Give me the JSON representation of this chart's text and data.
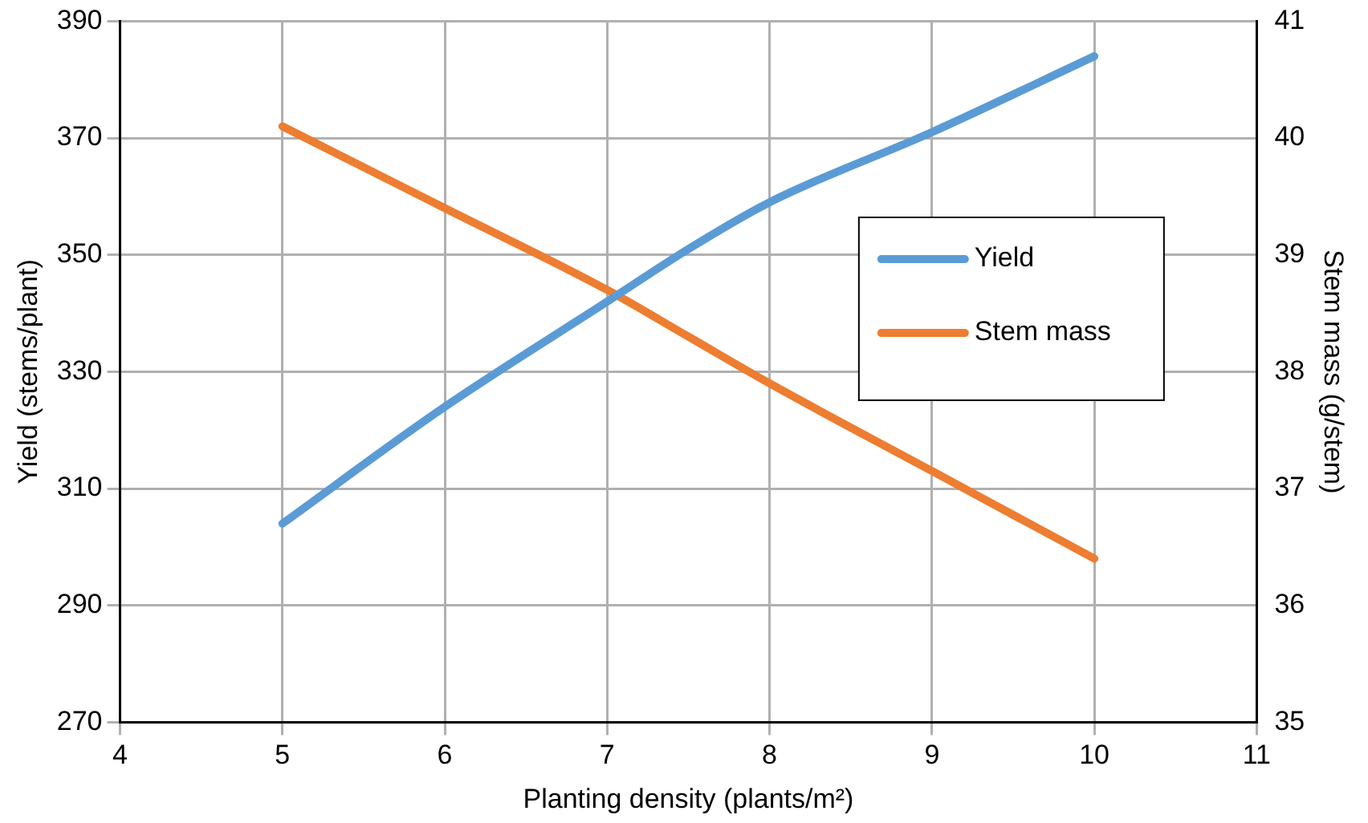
{
  "chart_data": {
    "type": "line",
    "xlabel": "Planting density (plants/m²)",
    "ylabel": "Yield (stems/plant)",
    "y2label": "Stem mass (g/stem)",
    "x": [
      5,
      6,
      7,
      7.5,
      8,
      9,
      10
    ],
    "series": [
      {
        "name": "Yield",
        "color": "#5b9bd5",
        "values": [
          304,
          324,
          342,
          351,
          359,
          371,
          384
        ]
      },
      {
        "name": "Stem mass",
        "color": "#ed7d31",
        "axis": "y2",
        "values": [
          40.1,
          39.4,
          38.7,
          38.3,
          37.9,
          37.15,
          36.4
        ]
      }
    ],
    "xlim": [
      4,
      11
    ],
    "xticks": [
      4,
      5,
      6,
      7,
      8,
      9,
      10,
      11
    ],
    "ylim": [
      270,
      390
    ],
    "yticks": [
      270,
      290,
      310,
      330,
      350,
      370,
      390
    ],
    "y2lim": [
      35,
      41
    ],
    "y2ticks": [
      35,
      36,
      37,
      38,
      39,
      40,
      41
    ],
    "grid": true,
    "legend": "right",
    "marker": "none",
    "line_style": "solid"
  }
}
